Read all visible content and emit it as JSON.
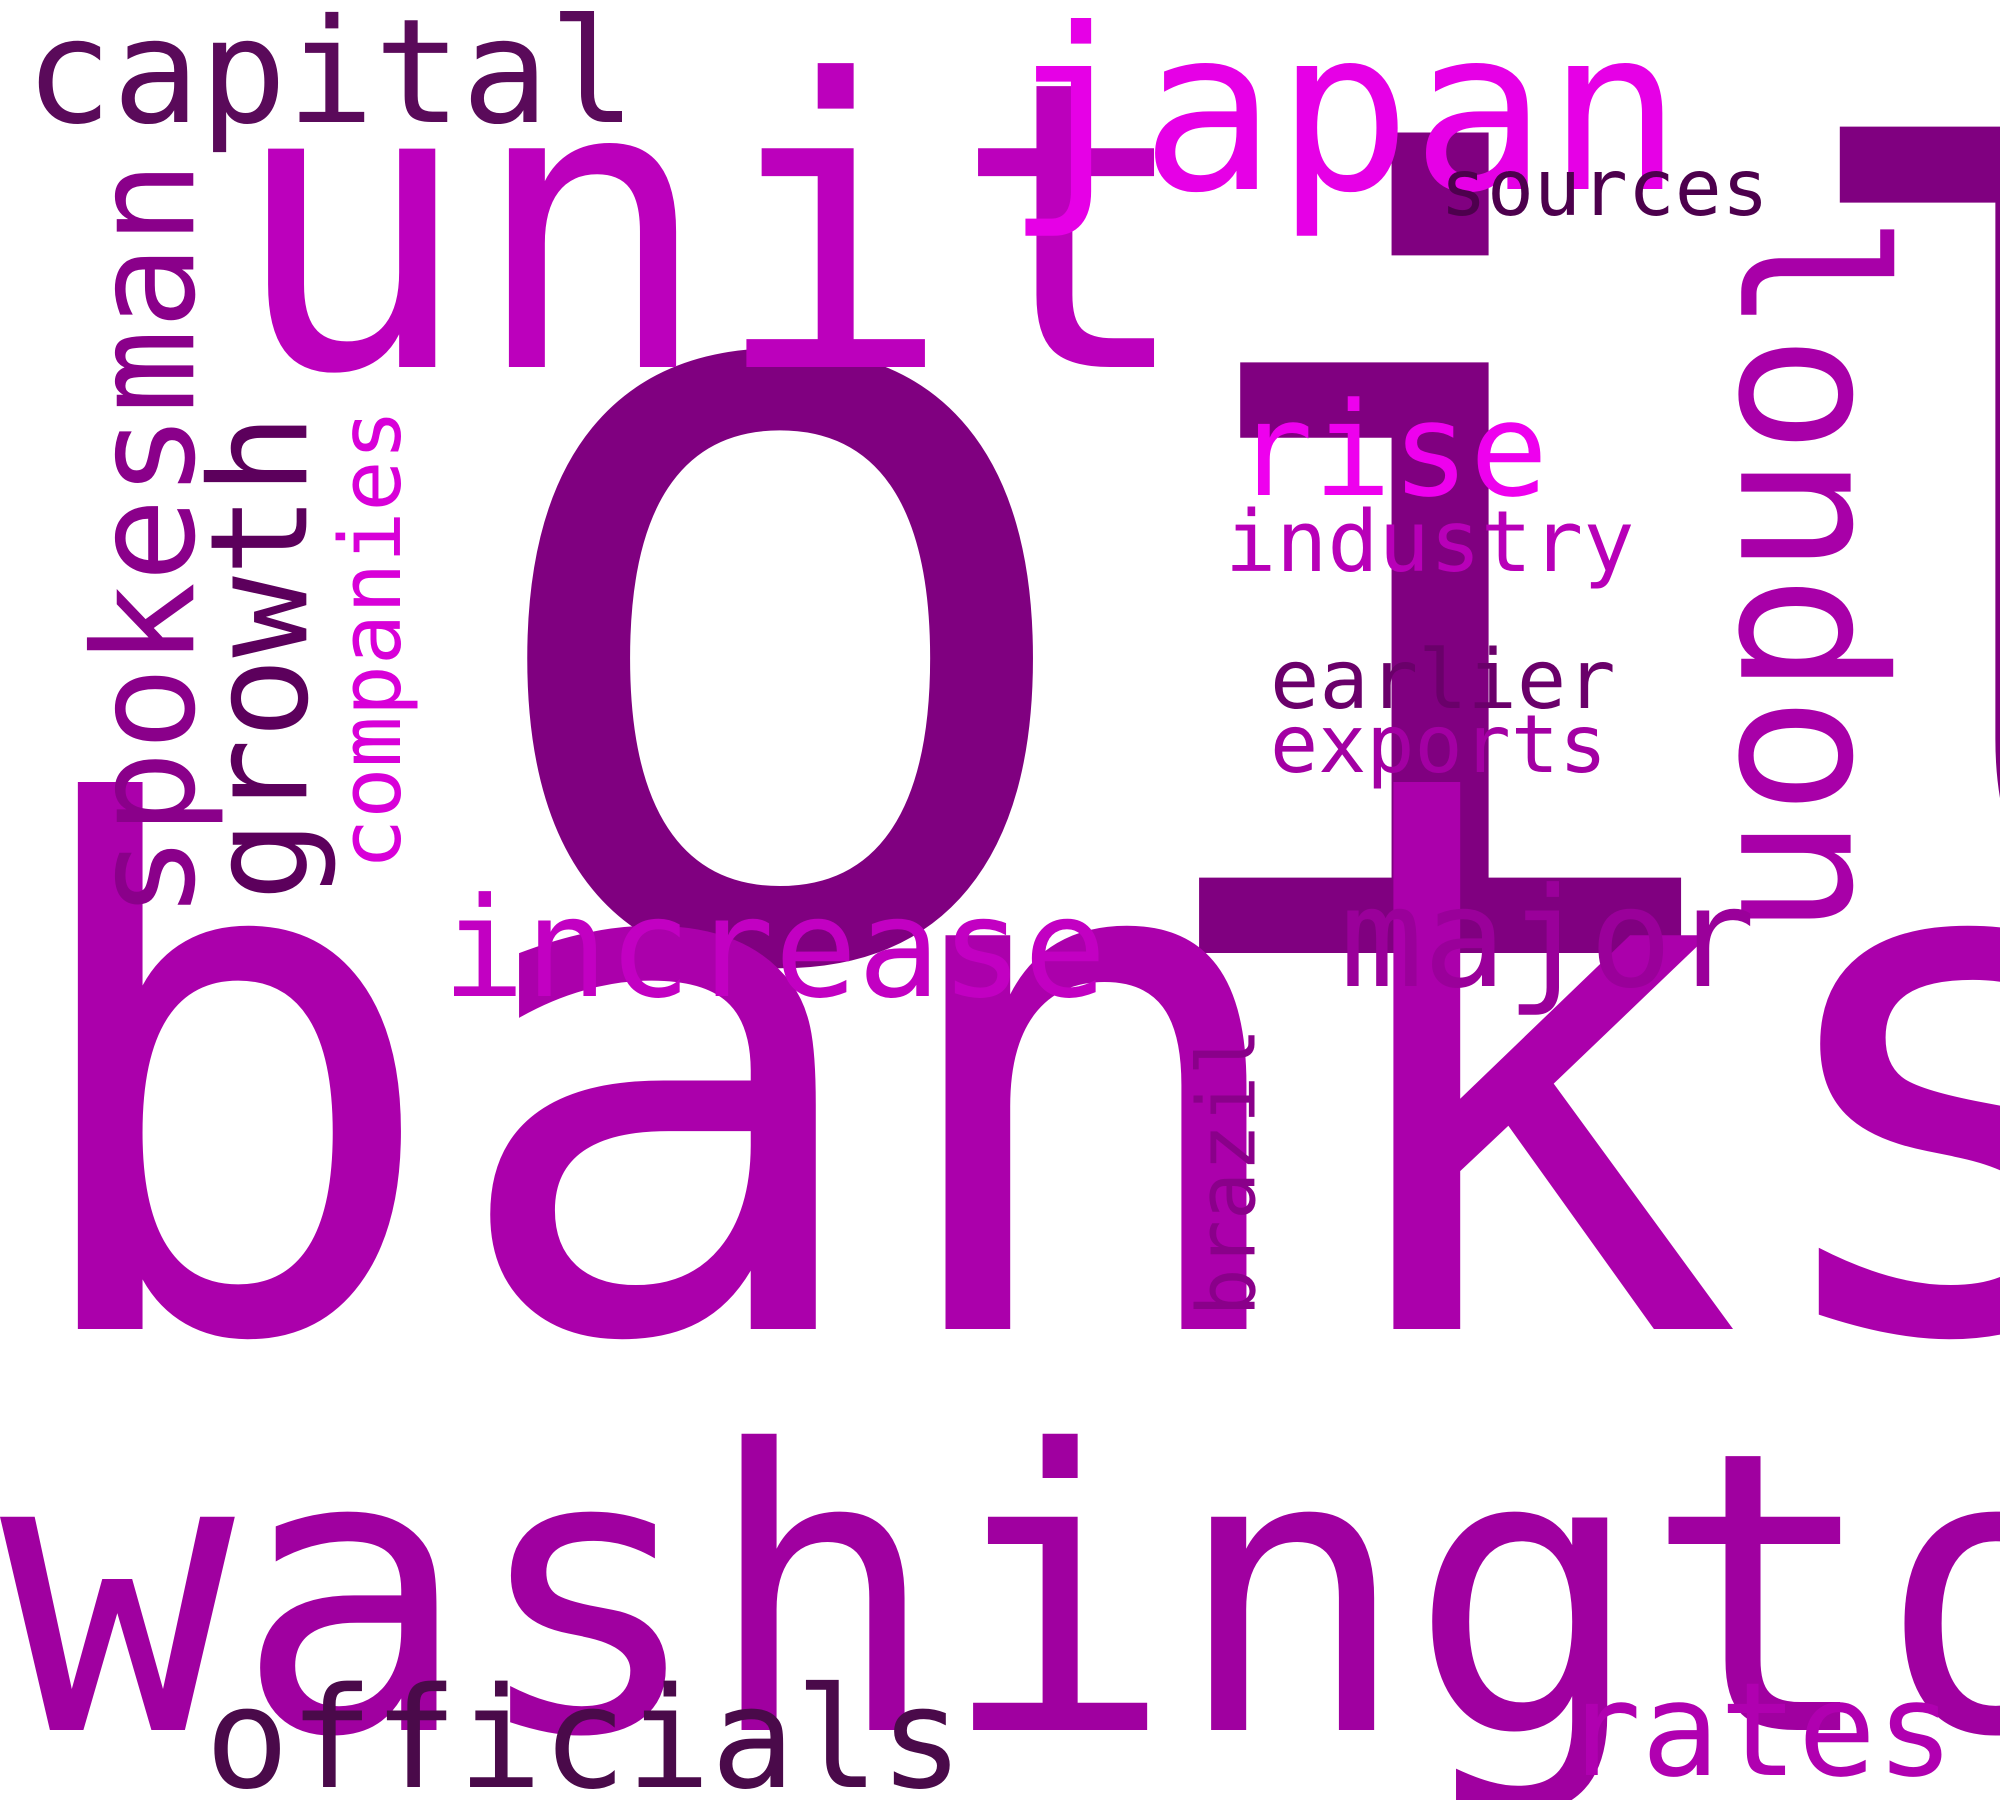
{
  "words": [
    {
      "text": "oil",
      "color": "#800080",
      "rotate": 0
    },
    {
      "text": "banks",
      "color": "#ab00ab",
      "rotate": 0
    },
    {
      "text": "washington",
      "color": "#a000a0",
      "rotate": 0
    },
    {
      "text": "unit",
      "color": "#bc00bc",
      "rotate": 0
    },
    {
      "text": "london",
      "color": "#a800a8",
      "rotate": 90
    },
    {
      "text": "japan",
      "color": "#e600e6",
      "rotate": 0
    },
    {
      "text": "spokesman",
      "color": "#8a008a",
      "rotate": -90
    },
    {
      "text": "growth",
      "color": "#5c005c",
      "rotate": -90
    },
    {
      "text": "capital",
      "color": "#5a0a5a",
      "rotate": 0
    },
    {
      "text": "increase",
      "color": "#c200c2",
      "rotate": 0
    },
    {
      "text": "major",
      "color": "#9a009a",
      "rotate": 0
    },
    {
      "text": "officials",
      "color": "#4a0a4a",
      "rotate": 0
    },
    {
      "text": "rates",
      "color": "#b000b0",
      "rotate": 0
    },
    {
      "text": "rise",
      "color": "#ee00ee",
      "rotate": 0
    },
    {
      "text": "companies",
      "color": "#d800d8",
      "rotate": -90
    },
    {
      "text": "brazil",
      "color": "#8a008a",
      "rotate": -90
    },
    {
      "text": "industry",
      "color": "#b800b8",
      "rotate": 0
    },
    {
      "text": "sources",
      "color": "#4d004d",
      "rotate": 0
    },
    {
      "text": "earlier",
      "color": "#6a006a",
      "rotate": 0
    },
    {
      "text": "exports",
      "color": "#a300a3",
      "rotate": 0
    }
  ]
}
